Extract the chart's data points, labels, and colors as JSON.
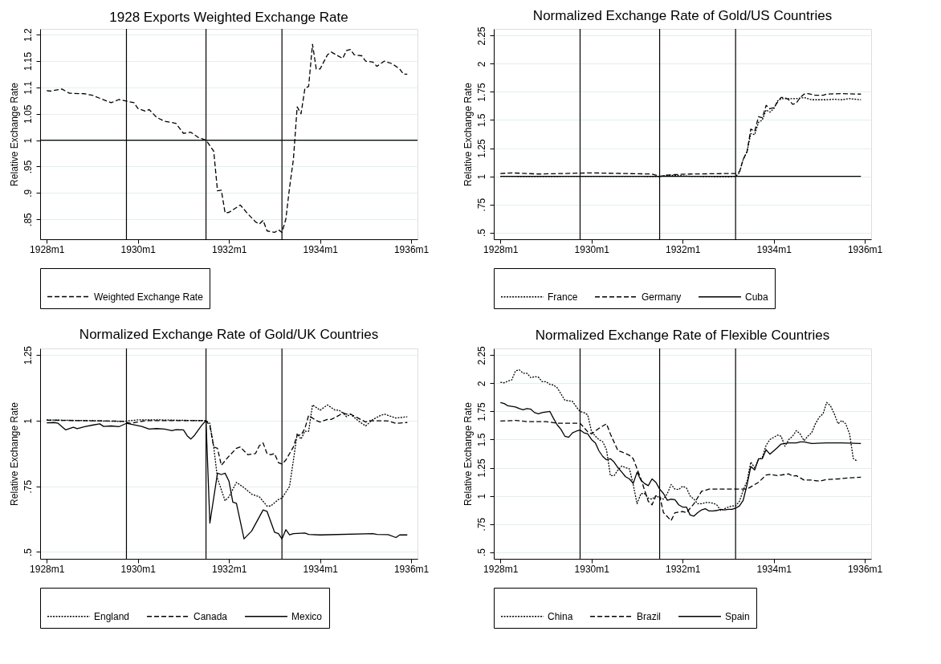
{
  "chart_data": [
    {
      "type": "line",
      "title": "1928 Exports Weighted Exchange Rate",
      "ylabel": "Relative Exchange Rate",
      "xlim": [
        "1927-11-09",
        "1936-02-21"
      ],
      "ylim": [
        0.812,
        1.211
      ],
      "xticks": [
        {
          "value": "1928-01",
          "label": "1928m1"
        },
        {
          "value": "1930-01",
          "label": "1930m1"
        },
        {
          "value": "1932-01",
          "label": "1932m1"
        },
        {
          "value": "1934-01",
          "label": "1934m1"
        },
        {
          "value": "1936-01",
          "label": "1936m1"
        }
      ],
      "yticks": [
        {
          "value": 0.85,
          "label": ".85"
        },
        {
          "value": 0.9,
          "label": ".9"
        },
        {
          "value": 0.95,
          "label": ".95"
        },
        1,
        1.05,
        1.1,
        1.15,
        1.2
      ],
      "grid": "y",
      "legend": "bottom",
      "ref_lines": [
        {
          "axis": "x",
          "value": "1929-10"
        },
        {
          "axis": "x",
          "value": "1931-07"
        },
        {
          "axis": "x",
          "value": "1933-03"
        },
        {
          "axis": "y",
          "value": 1
        }
      ],
      "series": [
        {
          "name": "Weighted Exchange Rate",
          "color": "#000000",
          "line_style": "dashed",
          "x": [
            "1928-01",
            "1928-02",
            "1928-05",
            "1928-07",
            "1928-11",
            "1929-01",
            "1929-06",
            "1929-08",
            "1929-12",
            "1930-01",
            "1930-03",
            "1930-04",
            "1930-06",
            "1930-08",
            "1930-11",
            "1931-01",
            "1931-03",
            "1931-05",
            "1931-07",
            "1931-09",
            "1931-10",
            "1931-11",
            "1931-12",
            "1932-01",
            "1932-04",
            "1932-06",
            "1932-08",
            "1932-09",
            "1932-10",
            "1932-11",
            "1933-01",
            "1933-02",
            "1933-03",
            "1933-04",
            "1933-05",
            "1933-06",
            "1933-07",
            "1933-08",
            "1933-09",
            "1933-10",
            "1933-11",
            "1933-12",
            "1934-01",
            "1934-03",
            "1934-04",
            "1934-07",
            "1934-08",
            "1934-09",
            "1934-10",
            "1934-12",
            "1935-01",
            "1935-03",
            "1935-04",
            "1935-06",
            "1935-08",
            "1935-10",
            "1935-11",
            "1935-12"
          ],
          "values": [
            1.094,
            1.093,
            1.097,
            1.089,
            1.088,
            1.085,
            1.071,
            1.077,
            1.071,
            1.06,
            1.055,
            1.058,
            1.043,
            1.036,
            1.032,
            1.013,
            1.015,
            1.005,
            1.0,
            0.979,
            0.904,
            0.905,
            0.862,
            0.863,
            0.877,
            0.86,
            0.845,
            0.841,
            0.848,
            0.828,
            0.825,
            0.83,
            0.825,
            0.85,
            0.91,
            0.964,
            1.063,
            1.05,
            1.098,
            1.102,
            1.182,
            1.135,
            1.135,
            1.162,
            1.167,
            1.155,
            1.17,
            1.172,
            1.162,
            1.16,
            1.15,
            1.148,
            1.14,
            1.15,
            1.145,
            1.135,
            1.125,
            1.125
          ]
        }
      ]
    },
    {
      "type": "line",
      "title": "Normalized Exchange Rate of Gold/US Countries",
      "ylabel": "Relative Exchange Rate",
      "xlim": [
        "1927-11-09",
        "1936-02-21"
      ],
      "ylim": [
        0.44,
        2.31
      ],
      "xticks": [
        {
          "value": "1928-01",
          "label": "1928m1"
        },
        {
          "value": "1930-01",
          "label": "1930m1"
        },
        {
          "value": "1932-01",
          "label": "1932m1"
        },
        {
          "value": "1934-01",
          "label": "1934m1"
        },
        {
          "value": "1936-01",
          "label": "1936m1"
        }
      ],
      "yticks": [
        {
          "value": 0.5,
          "label": ".5"
        },
        {
          "value": 0.75,
          "label": ".75"
        },
        1,
        1.25,
        1.5,
        1.75,
        2,
        2.25
      ],
      "grid": "y",
      "legend": "bottom",
      "ref_lines": [
        {
          "axis": "x",
          "value": "1929-10"
        },
        {
          "axis": "x",
          "value": "1931-07"
        },
        {
          "axis": "x",
          "value": "1933-03"
        }
      ],
      "series": [
        {
          "name": "France",
          "color": "#000000",
          "line_style": "dotted",
          "x": [
            "1928-01",
            "1928-11",
            "1929-09",
            "1930-07",
            "1931-07",
            "1931-09",
            "1932-03",
            "1933-01",
            "1933-03",
            "1933-04",
            "1933-05",
            "1933-06",
            "1933-07",
            "1933-08",
            "1933-09",
            "1933-10",
            "1933-11",
            "1933-12",
            "1934-01",
            "1934-02",
            "1934-03",
            "1934-07",
            "1934-09",
            "1934-11",
            "1935-03",
            "1935-05",
            "1935-07",
            "1935-09",
            "1935-12"
          ],
          "values": [
            1.0,
            0.997,
            1.0,
            1.0,
            0.998,
            1.01,
            1.0,
            0.995,
            1.0,
            1.03,
            1.15,
            1.22,
            1.38,
            1.37,
            1.48,
            1.5,
            1.59,
            1.57,
            1.6,
            1.67,
            1.69,
            1.69,
            1.7,
            1.68,
            1.68,
            1.685,
            1.68,
            1.69,
            1.68
          ]
        },
        {
          "name": "Germany",
          "color": "#000000",
          "line_style": "dashed",
          "x": [
            "1928-01",
            "1928-04",
            "1928-11",
            "1930-01",
            "1931-05",
            "1931-07",
            "1931-09",
            "1931-11",
            "1932-03",
            "1933-03",
            "1933-04",
            "1933-05",
            "1933-06",
            "1933-07",
            "1933-08",
            "1933-09",
            "1933-10",
            "1933-11",
            "1933-12",
            "1934-01",
            "1934-02",
            "1934-03",
            "1934-04",
            "1934-05",
            "1934-06",
            "1934-07",
            "1934-08",
            "1934-09",
            "1934-10",
            "1934-12",
            "1935-02",
            "1935-03",
            "1935-07",
            "1935-12"
          ],
          "values": [
            1.025,
            1.03,
            1.02,
            1.03,
            1.02,
            1.0,
            1.01,
            1.015,
            1.02,
            1.025,
            1.04,
            1.15,
            1.22,
            1.42,
            1.4,
            1.53,
            1.52,
            1.63,
            1.6,
            1.61,
            1.66,
            1.7,
            1.7,
            1.68,
            1.64,
            1.65,
            1.7,
            1.73,
            1.735,
            1.72,
            1.72,
            1.73,
            1.735,
            1.73
          ]
        },
        {
          "name": "Cuba",
          "color": "#000000",
          "line_style": "solid",
          "x": [
            "1928-01",
            "1930-01",
            "1932-01",
            "1934-01",
            "1935-12"
          ],
          "values": [
            1,
            1,
            1,
            1,
            1
          ]
        }
      ]
    },
    {
      "type": "line",
      "title": "Normalized Exchange Rate of Gold/UK Countries",
      "ylabel": "Relative Exchange Rate",
      "xlim": [
        "1927-11-09",
        "1936-02-21"
      ],
      "ylim": [
        0.474,
        1.275
      ],
      "xticks": [
        {
          "value": "1928-01",
          "label": "1928m1"
        },
        {
          "value": "1930-01",
          "label": "1930m1"
        },
        {
          "value": "1932-01",
          "label": "1932m1"
        },
        {
          "value": "1934-01",
          "label": "1934m1"
        },
        {
          "value": "1936-01",
          "label": "1936m1"
        }
      ],
      "yticks": [
        {
          "value": 0.5,
          "label": ".5"
        },
        {
          "value": 0.75,
          "label": ".75"
        },
        1,
        1.25
      ],
      "grid": "y",
      "legend": "bottom",
      "ref_lines": [
        {
          "axis": "x",
          "value": "1929-10"
        },
        {
          "axis": "x",
          "value": "1931-07"
        },
        {
          "axis": "x",
          "value": "1933-03"
        }
      ],
      "series": [
        {
          "name": "England",
          "color": "#000000",
          "line_style": "dotted",
          "x": [
            "1928-01",
            "1929-01",
            "1929-09",
            "1930-01",
            "1930-07",
            "1931-07",
            "1931-08",
            "1931-09",
            "1931-10",
            "1931-12",
            "1932-01",
            "1932-03",
            "1932-05",
            "1932-07",
            "1932-09",
            "1932-11",
            "1932-12",
            "1933-02",
            "1933-03",
            "1933-05",
            "1933-06",
            "1933-07",
            "1933-08",
            "1933-09",
            "1933-10",
            "1933-11",
            "1934-01",
            "1934-03",
            "1934-05",
            "1934-06",
            "1934-07",
            "1934-08",
            "1934-09",
            "1934-11",
            "1935-01",
            "1935-03",
            "1935-05",
            "1935-06",
            "1935-09",
            "1935-12"
          ],
          "values": [
            1.003,
            1.0,
            0.997,
            1.003,
            1.003,
            1.0,
            0.99,
            0.9,
            0.78,
            0.695,
            0.71,
            0.765,
            0.745,
            0.72,
            0.71,
            0.675,
            0.675,
            0.7,
            0.705,
            0.75,
            0.85,
            0.95,
            0.93,
            0.96,
            0.96,
            1.06,
            1.04,
            1.06,
            1.04,
            1.04,
            1.03,
            1.015,
            1.025,
            1.0,
            0.98,
            1.005,
            1.02,
            1.025,
            1.01,
            1.015
          ]
        },
        {
          "name": "Canada",
          "color": "#000000",
          "line_style": "dashed",
          "x": [
            "1928-01",
            "1928-11",
            "1929-09",
            "1929-11",
            "1930-01",
            "1930-03",
            "1931-07",
            "1931-08",
            "1931-09",
            "1931-10",
            "1931-11",
            "1932-01",
            "1932-03",
            "1932-04",
            "1932-06",
            "1932-08",
            "1932-09",
            "1932-10",
            "1932-11",
            "1932-12",
            "1933-01",
            "1933-02",
            "1933-03",
            "1933-04",
            "1933-06",
            "1933-07",
            "1933-08",
            "1933-09",
            "1933-10",
            "1933-12",
            "1934-01",
            "1934-03",
            "1934-04",
            "1934-06",
            "1934-07",
            "1934-08",
            "1934-09",
            "1934-11",
            "1935-01",
            "1935-02",
            "1935-07",
            "1935-09",
            "1935-12"
          ],
          "values": [
            1.002,
            1.0,
            0.998,
            0.99,
            0.995,
            1.0,
            1.0,
            0.98,
            0.9,
            0.895,
            0.83,
            0.865,
            0.895,
            0.9,
            0.87,
            0.875,
            0.905,
            0.915,
            0.875,
            0.87,
            0.875,
            0.84,
            0.835,
            0.85,
            0.9,
            0.945,
            0.945,
            0.97,
            1.02,
            1.0,
            0.995,
            1.005,
            1.005,
            1.02,
            1.03,
            1.025,
            1.025,
            1.01,
            0.995,
            1.0,
            0.999,
            0.99,
            0.993
          ]
        },
        {
          "name": "Mexico",
          "color": "#000000",
          "line_style": "solid",
          "x": [
            "1928-01",
            "1928-03",
            "1928-04",
            "1928-06",
            "1928-08",
            "1928-09",
            "1928-11",
            "1929-01",
            "1929-03",
            "1929-04",
            "1929-06",
            "1929-08",
            "1929-10",
            "1929-12",
            "1930-02",
            "1930-04",
            "1930-06",
            "1930-08",
            "1930-10",
            "1930-11",
            "1931-01",
            "1931-02",
            "1931-03",
            "1931-04",
            "1931-05",
            "1931-06",
            "1931-07",
            "1931-08",
            "1931-10",
            "1931-11",
            "1931-12",
            "1932-01",
            "1932-02",
            "1932-03",
            "1932-05",
            "1932-07",
            "1932-10",
            "1932-11",
            "1933-01",
            "1933-02",
            "1933-03",
            "1933-04",
            "1933-05",
            "1933-06",
            "1933-09",
            "1933-10",
            "1934-01",
            "1935-03",
            "1935-04",
            "1935-07",
            "1935-09",
            "1935-10",
            "1935-12"
          ],
          "values": [
            0.992,
            0.993,
            0.99,
            0.965,
            0.975,
            0.97,
            0.977,
            0.983,
            0.988,
            0.978,
            0.98,
            0.977,
            0.99,
            0.984,
            0.978,
            0.968,
            0.97,
            0.968,
            0.962,
            0.966,
            0.965,
            0.942,
            0.93,
            0.945,
            0.965,
            0.985,
            1.0,
            0.61,
            0.8,
            0.795,
            0.8,
            0.77,
            0.69,
            0.685,
            0.55,
            0.58,
            0.66,
            0.655,
            0.575,
            0.57,
            0.55,
            0.585,
            0.565,
            0.57,
            0.572,
            0.567,
            0.565,
            0.57,
            0.567,
            0.566,
            0.555,
            0.565,
            0.565
          ]
        }
      ]
    },
    {
      "type": "line",
      "title": "Normalized Exchange Rate of Flexible Countries",
      "ylabel": "Relative Exchange Rate",
      "xlim": [
        "1927-11-09",
        "1936-02-21"
      ],
      "ylim": [
        0.44,
        2.31
      ],
      "xticks": [
        {
          "value": "1928-01",
          "label": "1928m1"
        },
        {
          "value": "1930-01",
          "label": "1930m1"
        },
        {
          "value": "1932-01",
          "label": "1932m1"
        },
        {
          "value": "1934-01",
          "label": "1934m1"
        },
        {
          "value": "1936-01",
          "label": "1936m1"
        }
      ],
      "yticks": [
        {
          "value": 0.5,
          "label": ".5"
        },
        {
          "value": 0.75,
          "label": ".75"
        },
        1,
        1.25,
        1.5,
        1.75,
        2,
        2.25
      ],
      "grid": "y",
      "legend": "bottom",
      "ref_lines": [
        {
          "axis": "x",
          "value": "1929-10"
        },
        {
          "axis": "x",
          "value": "1931-07"
        },
        {
          "axis": "x",
          "value": "1933-03"
        }
      ],
      "series": [
        {
          "name": "China",
          "color": "#000000",
          "line_style": "dotted",
          "x": [
            "1928-01",
            "1928-02",
            "1928-03",
            "1928-04",
            "1928-05",
            "1928-06",
            "1928-07",
            "1928-08",
            "1928-09",
            "1928-10",
            "1928-11",
            "1928-12",
            "1929-01",
            "1929-02",
            "1929-03",
            "1929-04",
            "1929-06",
            "1929-07",
            "1929-08",
            "1929-09",
            "1929-10",
            "1929-11",
            "1929-12",
            "1930-01",
            "1930-02",
            "1930-03",
            "1930-04",
            "1930-05",
            "1930-06",
            "1930-07",
            "1930-08",
            "1930-09",
            "1930-10",
            "1930-11",
            "1930-12",
            "1931-01",
            "1931-02",
            "1931-03",
            "1931-04",
            "1931-05",
            "1931-06",
            "1931-07",
            "1931-08",
            "1931-09",
            "1931-10",
            "1931-11",
            "1931-12",
            "1932-01",
            "1932-02",
            "1932-03",
            "1932-04",
            "1932-05",
            "1932-06",
            "1932-07",
            "1932-08",
            "1932-09",
            "1932-10",
            "1932-11",
            "1932-12",
            "1933-01",
            "1933-02",
            "1933-03",
            "1933-04",
            "1933-05",
            "1933-06",
            "1933-07",
            "1933-08",
            "1933-09",
            "1933-10",
            "1933-11",
            "1933-12",
            "1934-01",
            "1934-02",
            "1934-03",
            "1934-04",
            "1934-05",
            "1934-06",
            "1934-07",
            "1934-08",
            "1934-09",
            "1934-10",
            "1934-11",
            "1934-12",
            "1935-01",
            "1935-02",
            "1935-03",
            "1935-04",
            "1935-05",
            "1935-06",
            "1935-07",
            "1935-08",
            "1935-09",
            "1935-10",
            "1935-11"
          ],
          "values": [
            2.01,
            2.005,
            2.02,
            2.03,
            2.11,
            2.12,
            2.09,
            2.09,
            2.05,
            2.06,
            2.055,
            2.015,
            2.015,
            1.99,
            1.985,
            1.96,
            1.85,
            1.845,
            1.84,
            1.79,
            1.75,
            1.74,
            1.72,
            1.57,
            1.53,
            1.5,
            1.48,
            1.41,
            1.18,
            1.18,
            1.23,
            1.265,
            1.25,
            1.24,
            1.1,
            0.93,
            1.02,
            1.02,
            0.98,
            0.97,
            1.0,
            0.985,
            0.97,
            1.02,
            1.1,
            1.06,
            1.055,
            1.085,
            1.07,
            1.0,
            0.97,
            0.93,
            0.93,
            0.94,
            0.94,
            0.935,
            0.92,
            0.87,
            0.885,
            0.9,
            0.91,
            0.91,
            0.95,
            1.05,
            1.13,
            1.3,
            1.25,
            1.32,
            1.34,
            1.45,
            1.5,
            1.52,
            1.54,
            1.53,
            1.44,
            1.5,
            1.53,
            1.58,
            1.55,
            1.49,
            1.53,
            1.56,
            1.64,
            1.7,
            1.73,
            1.83,
            1.8,
            1.73,
            1.64,
            1.67,
            1.64,
            1.55,
            1.33,
            1.31
          ]
        },
        {
          "name": "Brazil",
          "color": "#000000",
          "line_style": "dashed",
          "x": [
            "1928-01",
            "1928-05",
            "1928-08",
            "1929-01",
            "1929-04",
            "1929-10",
            "1929-12",
            "1930-01",
            "1930-03",
            "1930-05",
            "1930-06",
            "1930-08",
            "1930-09",
            "1930-11",
            "1930-12",
            "1931-02",
            "1931-04",
            "1931-05",
            "1931-06",
            "1931-07",
            "1931-08",
            "1931-10",
            "1931-11",
            "1932-01",
            "1932-02",
            "1932-04",
            "1932-06",
            "1932-08",
            "1933-06",
            "1933-08",
            "1933-09",
            "1933-11",
            "1933-12",
            "1934-02",
            "1934-04",
            "1934-05",
            "1934-06",
            "1934-07",
            "1934-09",
            "1934-11",
            "1935-01",
            "1935-03",
            "1935-06",
            "1935-09",
            "1935-12"
          ],
          "values": [
            1.665,
            1.67,
            1.66,
            1.66,
            1.645,
            1.645,
            1.57,
            1.55,
            1.6,
            1.64,
            1.55,
            1.4,
            1.39,
            1.36,
            1.33,
            1.15,
            0.95,
            0.92,
            1.0,
            1.0,
            0.85,
            0.78,
            0.85,
            0.86,
            0.85,
            0.93,
            1.04,
            1.06,
            1.06,
            1.1,
            1.12,
            1.185,
            1.19,
            1.18,
            1.19,
            1.195,
            1.175,
            1.18,
            1.14,
            1.14,
            1.13,
            1.145,
            1.15,
            1.16,
            1.165
          ]
        },
        {
          "name": "Spain",
          "color": "#000000",
          "line_style": "solid",
          "x": [
            "1928-01",
            "1928-02",
            "1928-03",
            "1928-04",
            "1928-05",
            "1928-06",
            "1928-07",
            "1928-08",
            "1928-09",
            "1928-10",
            "1928-11",
            "1928-12",
            "1929-01",
            "1929-02",
            "1929-03",
            "1929-04",
            "1929-05",
            "1929-06",
            "1929-07",
            "1929-08",
            "1929-09",
            "1929-10",
            "1929-11",
            "1929-12",
            "1930-01",
            "1930-02",
            "1930-03",
            "1930-04",
            "1930-05",
            "1930-06",
            "1930-07",
            "1930-08",
            "1930-09",
            "1930-10",
            "1930-11",
            "1930-12",
            "1931-01",
            "1931-02",
            "1931-03",
            "1931-04",
            "1931-05",
            "1931-06",
            "1931-07",
            "1931-08",
            "1931-09",
            "1931-10",
            "1931-11",
            "1931-12",
            "1932-01",
            "1932-02",
            "1932-03",
            "1932-04",
            "1932-05",
            "1932-06",
            "1932-07",
            "1932-08",
            "1932-09",
            "1932-10",
            "1932-11",
            "1932-12",
            "1933-01",
            "1933-02",
            "1933-03",
            "1933-04",
            "1933-05",
            "1933-06",
            "1933-07",
            "1933-08",
            "1933-09",
            "1933-10",
            "1933-11",
            "1933-12",
            "1934-01",
            "1934-02",
            "1934-03",
            "1934-05",
            "1934-07",
            "1934-08",
            "1934-09",
            "1934-11",
            "1935-03",
            "1935-07",
            "1935-12"
          ],
          "values": [
            1.83,
            1.82,
            1.8,
            1.795,
            1.79,
            1.775,
            1.765,
            1.775,
            1.77,
            1.74,
            1.73,
            1.74,
            1.745,
            1.75,
            1.69,
            1.63,
            1.59,
            1.53,
            1.52,
            1.56,
            1.575,
            1.585,
            1.56,
            1.55,
            1.5,
            1.47,
            1.4,
            1.35,
            1.32,
            1.33,
            1.3,
            1.25,
            1.21,
            1.17,
            1.15,
            1.11,
            1.21,
            1.14,
            1.11,
            1.09,
            1.15,
            1.12,
            1.06,
            1.02,
            0.96,
            0.97,
            0.965,
            0.92,
            0.9,
            0.9,
            0.83,
            0.82,
            0.85,
            0.875,
            0.885,
            0.865,
            0.865,
            0.87,
            0.88,
            0.875,
            0.88,
            0.88,
            0.89,
            0.91,
            0.96,
            1.1,
            1.26,
            1.23,
            1.33,
            1.33,
            1.41,
            1.37,
            1.4,
            1.43,
            1.46,
            1.47,
            1.47,
            1.48,
            1.48,
            1.465,
            1.47,
            1.47,
            1.465
          ]
        }
      ]
    }
  ]
}
